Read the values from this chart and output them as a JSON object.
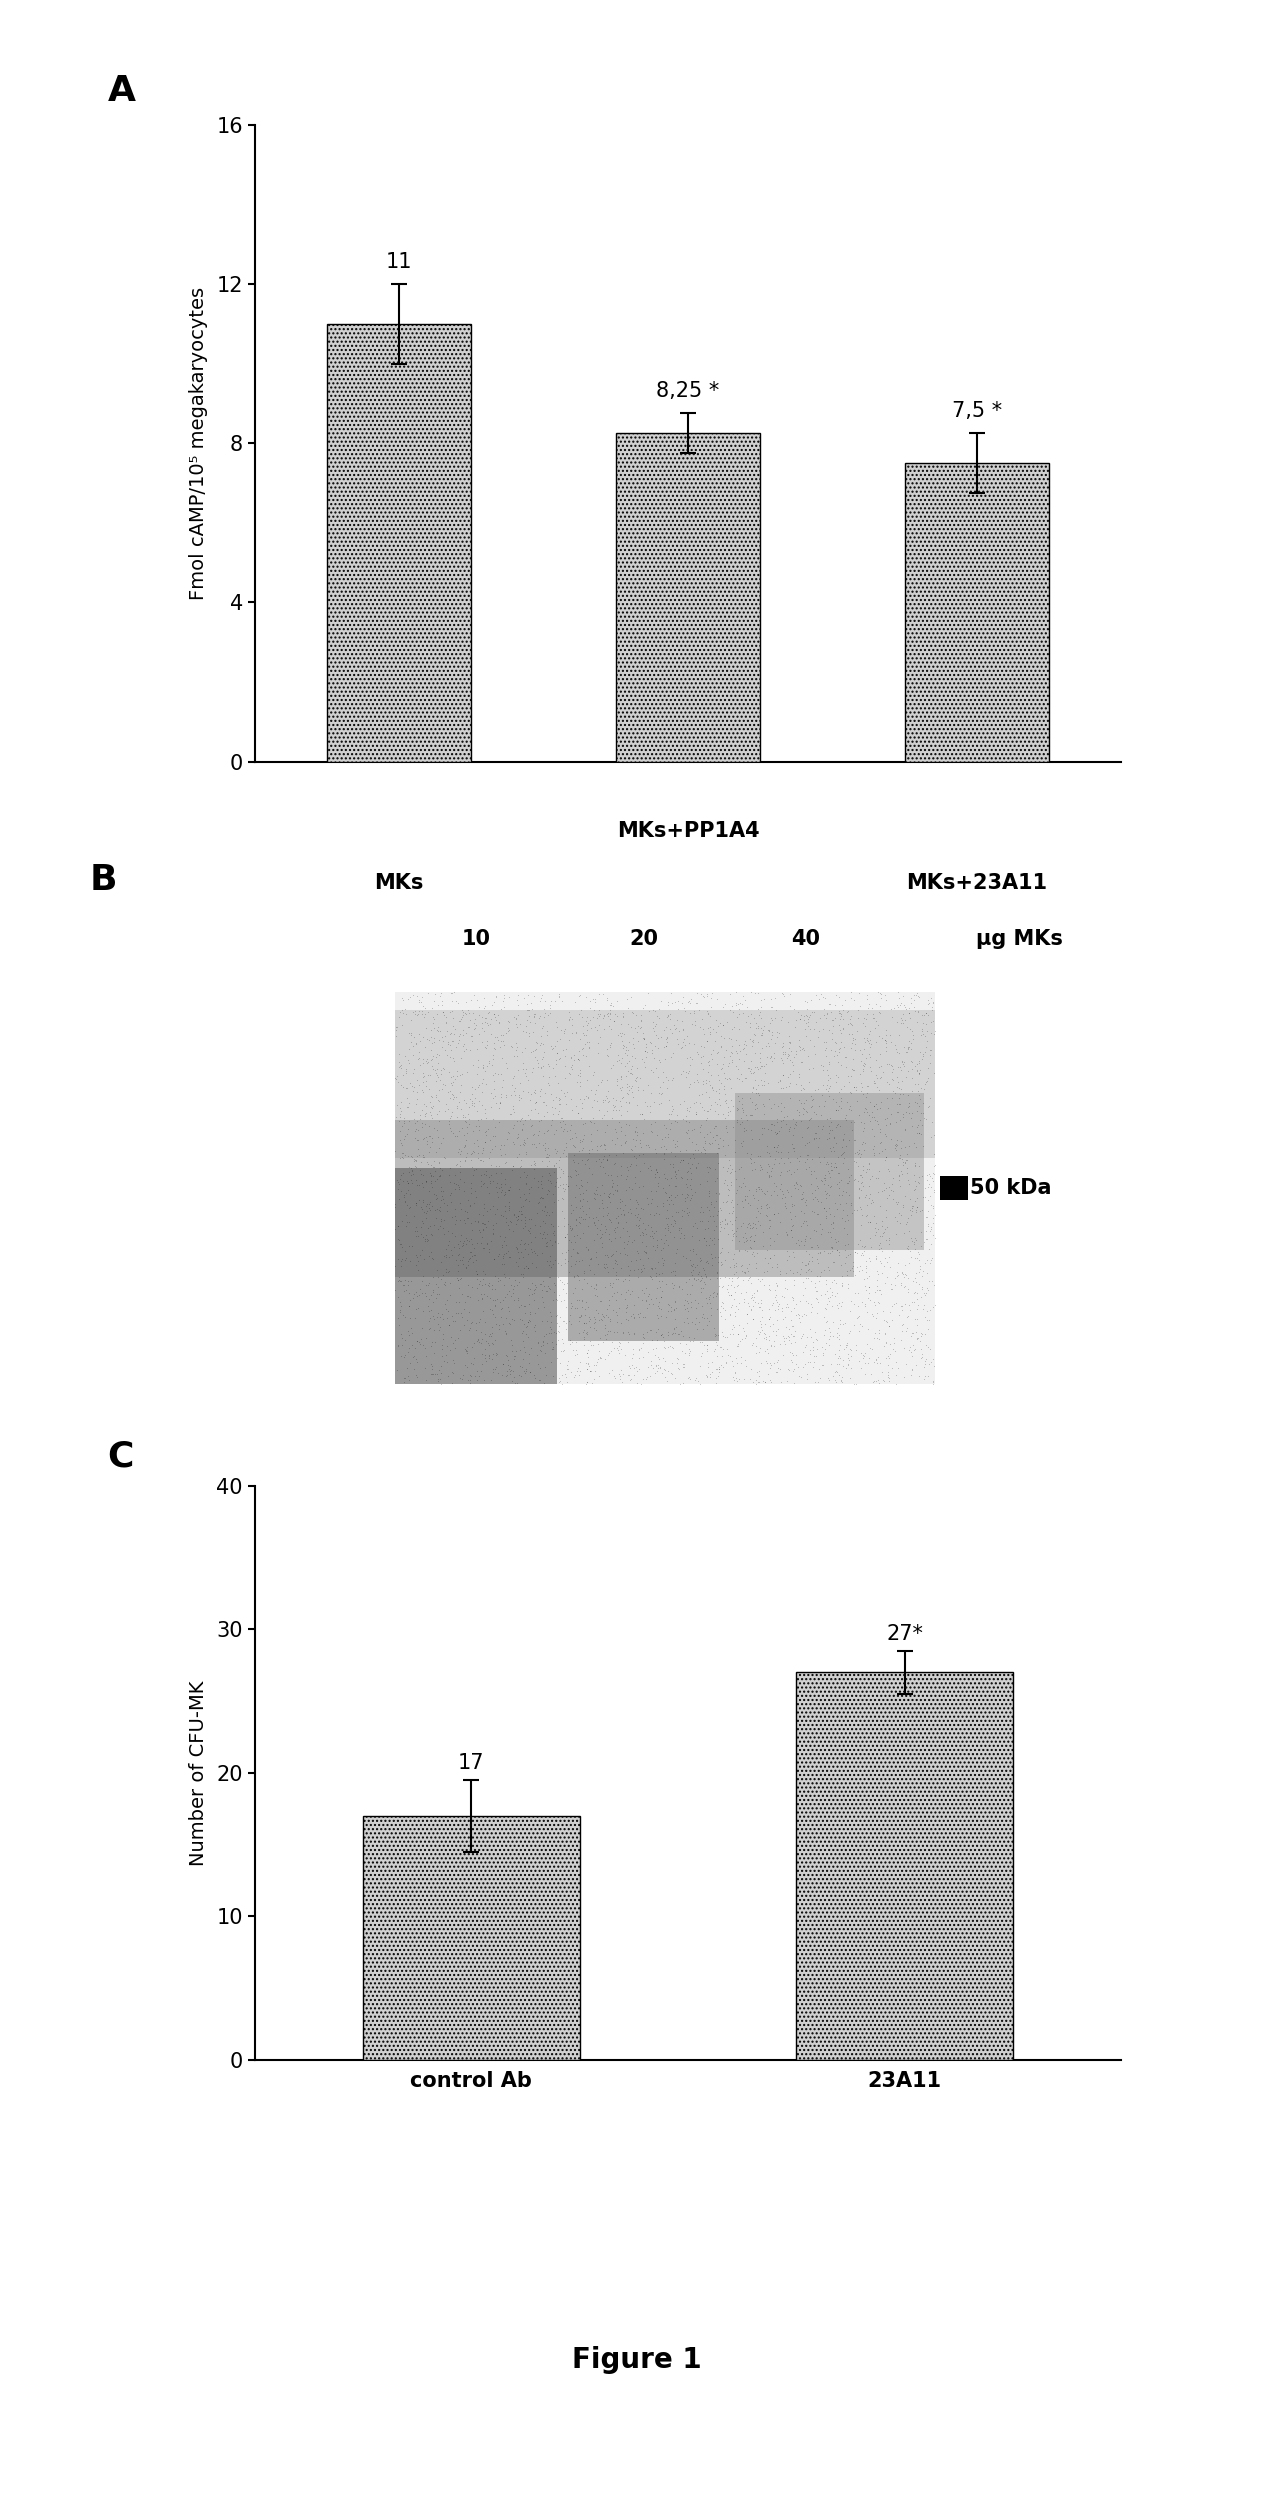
{
  "panel_A": {
    "categories": [
      "MKs",
      "MKs+PP1A4",
      "MKs+23A11"
    ],
    "values": [
      11.0,
      8.25,
      7.5
    ],
    "errors": [
      1.0,
      0.5,
      0.75
    ],
    "labels": [
      "11",
      "8,25 *",
      "7,5 *"
    ],
    "ylabel": "Fmol cAMP/10⁵ megakaryocytes",
    "ylim": [
      0,
      16
    ],
    "yticks": [
      0,
      4,
      8,
      12,
      16
    ],
    "bar_color": "#d0d0d0",
    "label_fontsize": 15,
    "tick_fontsize": 15,
    "ylabel_fontsize": 14
  },
  "panel_B": {
    "lane_labels": [
      "10",
      "20",
      "40",
      "μg MKs"
    ],
    "kda_label": "50 kDa",
    "label_fontsize": 15
  },
  "panel_C": {
    "categories": [
      "control Ab",
      "23A11"
    ],
    "values": [
      17.0,
      27.0
    ],
    "errors": [
      2.5,
      1.5
    ],
    "labels": [
      "17",
      "27*"
    ],
    "ylabel": "Number of CFU-MK",
    "ylim": [
      0,
      40
    ],
    "yticks": [
      0,
      10,
      20,
      30,
      40
    ],
    "bar_color": "#d0d0d0",
    "label_fontsize": 15,
    "tick_fontsize": 15,
    "ylabel_fontsize": 14
  },
  "figure_label": "Figure 1",
  "panel_label_fontsize": 26,
  "xticklabel_fontsize": 15
}
